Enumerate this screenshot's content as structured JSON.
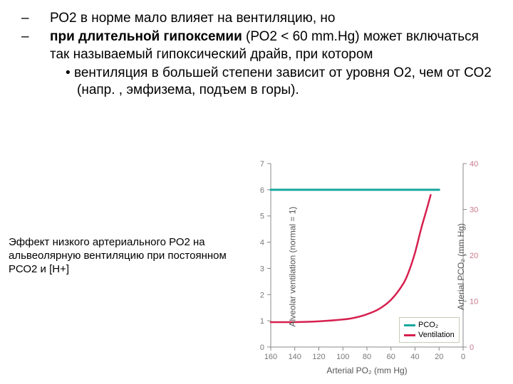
{
  "text": {
    "line1": "РО2 в норме мало влияет на вентиляцию, но",
    "line2a": "при длительной гипоксемии",
    "line2b": " (РО2 < 60 mm.Hg) ",
    "line2c": "может включаться так называемый гипоксический драйв, при котором",
    "sub1": "вентиляция в большей степени зависит от  уровня О2, чем от СО2 (напр. , эмфизема, подъем в горы)."
  },
  "caption": "Эффект низкого артериального РО2 на альвеолярную вентиляцию при постоянном РСО2 и  [H+]",
  "chart": {
    "type": "line",
    "x_label": "Arterial PO₂ (mm Hg)",
    "y_left_label": "Alveolar ventilation (normal = 1)",
    "y_right_label": "Arterial PCO₂ (mm Hg)",
    "x_ticks": [
      160,
      140,
      120,
      100,
      80,
      60,
      40,
      20,
      0
    ],
    "y_left_ticks": [
      0,
      1,
      2,
      3,
      4,
      5,
      6,
      7
    ],
    "y_right_ticks": [
      0,
      10,
      20,
      30,
      40
    ],
    "xlim": [
      160,
      0
    ],
    "ylim_left": [
      0,
      7
    ],
    "ylim_right": [
      0,
      40
    ],
    "tick_fontsize": 11,
    "label_fontsize": 12,
    "colors": {
      "ventilation": "#d6204e",
      "pco2": "#16a79e",
      "axis": "#888888",
      "tick_text": "#777777",
      "right_tick_text": "#c8788a",
      "legend_border": "#c5ceb6",
      "background": "#ffffff"
    },
    "line_width_ventilation": 2.5,
    "line_width_pco2": 3,
    "pco2_y_left_value": 6,
    "pco2_x_range": [
      160,
      20
    ],
    "ventilation_points": [
      {
        "x": 160,
        "y": 0.95
      },
      {
        "x": 140,
        "y": 0.95
      },
      {
        "x": 120,
        "y": 0.98
      },
      {
        "x": 100,
        "y": 1.05
      },
      {
        "x": 90,
        "y": 1.12
      },
      {
        "x": 80,
        "y": 1.25
      },
      {
        "x": 70,
        "y": 1.45
      },
      {
        "x": 60,
        "y": 1.8
      },
      {
        "x": 50,
        "y": 2.4
      },
      {
        "x": 45,
        "y": 2.9
      },
      {
        "x": 40,
        "y": 3.6
      },
      {
        "x": 35,
        "y": 4.5
      },
      {
        "x": 30,
        "y": 5.3
      },
      {
        "x": 27,
        "y": 5.8
      }
    ],
    "legend": {
      "items": [
        {
          "label": "PCO₂",
          "color": "#16a79e"
        },
        {
          "label": "Ventilation",
          "color": "#d6204e"
        }
      ]
    }
  }
}
